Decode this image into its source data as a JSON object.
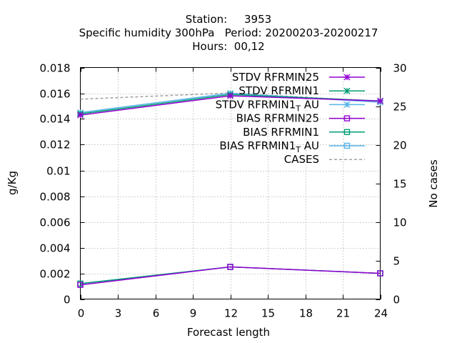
{
  "chart_data": {
    "type": "line",
    "title": {
      "line1": "Station:     3953",
      "line2": "Specific humidity 300hPa   Period: 20200203-20200217",
      "line3": "Hours:  00,12"
    },
    "xlabel": "Forecast length",
    "ylabel": "g/Kg",
    "y2label": "No cases",
    "xlim": [
      0,
      24
    ],
    "ylim": [
      0,
      0.018
    ],
    "y2lim": [
      0,
      30
    ],
    "xticks": [
      "0",
      "3",
      "6",
      "9",
      "12",
      "15",
      "18",
      "21",
      "24"
    ],
    "yticks": [
      "0",
      "0.002",
      "0.004",
      "0.006",
      "0.008",
      "0.01",
      "0.012",
      "0.014",
      "0.016",
      "0.018"
    ],
    "y2ticks": [
      "0",
      "5",
      "10",
      "15",
      "20",
      "25",
      "30"
    ],
    "grid": true,
    "legend_position": "top-right",
    "x": [
      0,
      12,
      24
    ],
    "series": [
      {
        "name": "STDV RFRMIN25",
        "values": [
          0.0143,
          0.0158,
          0.0154
        ],
        "color": "#9400d3",
        "marker": "x"
      },
      {
        "name": "STDV RFRMIN1",
        "values": [
          0.0144,
          0.0159,
          0.0154
        ],
        "color": "#009e73",
        "marker": "x"
      },
      {
        "name": "STDV RFRMIN1_T AU",
        "values": [
          0.0145,
          0.016,
          0.0153
        ],
        "color": "#56b4e9",
        "marker": "x"
      },
      {
        "name": "BIAS RFRMIN25",
        "values": [
          0.0011,
          0.0025,
          0.002
        ],
        "color": "#9400d3",
        "marker": "square"
      },
      {
        "name": "BIAS RFRMIN1",
        "values": [
          0.0012,
          0.0025,
          0.002
        ],
        "color": "#009e73",
        "marker": "square"
      },
      {
        "name": "BIAS RFRMIN1_T AU",
        "values": [
          0.0012,
          0.0025,
          0.002
        ],
        "color": "#56b4e9",
        "marker": "square"
      },
      {
        "name": "CASES",
        "values": [
          25.9,
          26.7,
          25.6
        ],
        "axis": "y2",
        "color": "#a0a0a0",
        "dashed": true
      }
    ]
  }
}
